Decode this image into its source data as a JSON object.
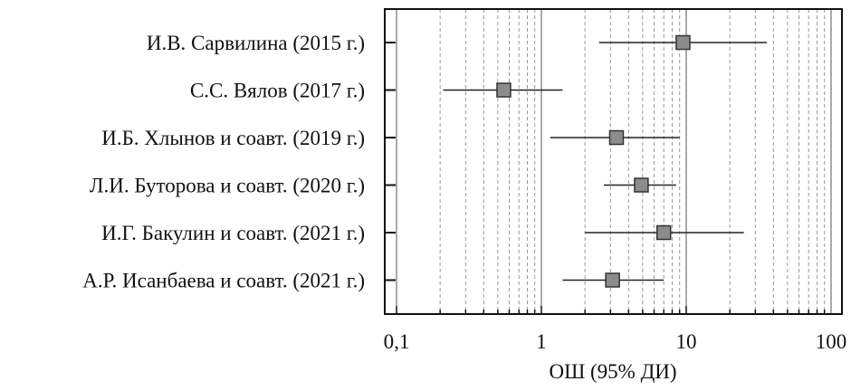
{
  "chart_data": {
    "type": "forest",
    "xlabel": "ОШ (95% ДИ)",
    "x_scale": "log",
    "xlim": [
      0.1,
      100
    ],
    "x_ticks": [
      {
        "value": 0.1,
        "label": "0,1"
      },
      {
        "value": 1,
        "label": "1"
      },
      {
        "value": 10,
        "label": "10"
      },
      {
        "value": 100,
        "label": "100"
      }
    ],
    "grid": "vertical dashed minor gridlines",
    "studies": [
      {
        "label": "И.В. Сарвилина (2015 г.)",
        "or": 9.5,
        "ci_low": 2.5,
        "ci_high": 36
      },
      {
        "label": "С.С. Вялов (2017 г.)",
        "or": 0.55,
        "ci_low": 0.21,
        "ci_high": 1.4
      },
      {
        "label": "И.Б. Хлынов и соавт. (2019 г.)",
        "or": 3.3,
        "ci_low": 1.15,
        "ci_high": 9.0
      },
      {
        "label": "Л.И. Буторова и соавт. (2020 г.)",
        "or": 4.9,
        "ci_low": 2.7,
        "ci_high": 8.5
      },
      {
        "label": "И.Г. Бакулин и соавт. (2021 г.)",
        "or": 7.0,
        "ci_low": 2.0,
        "ci_high": 25
      },
      {
        "label": "А.Р. Исанбаева и соавт. (2021 г.)",
        "or": 3.1,
        "ci_low": 1.4,
        "ci_high": 7.0
      }
    ],
    "marker_color": "#8c8c8c"
  }
}
